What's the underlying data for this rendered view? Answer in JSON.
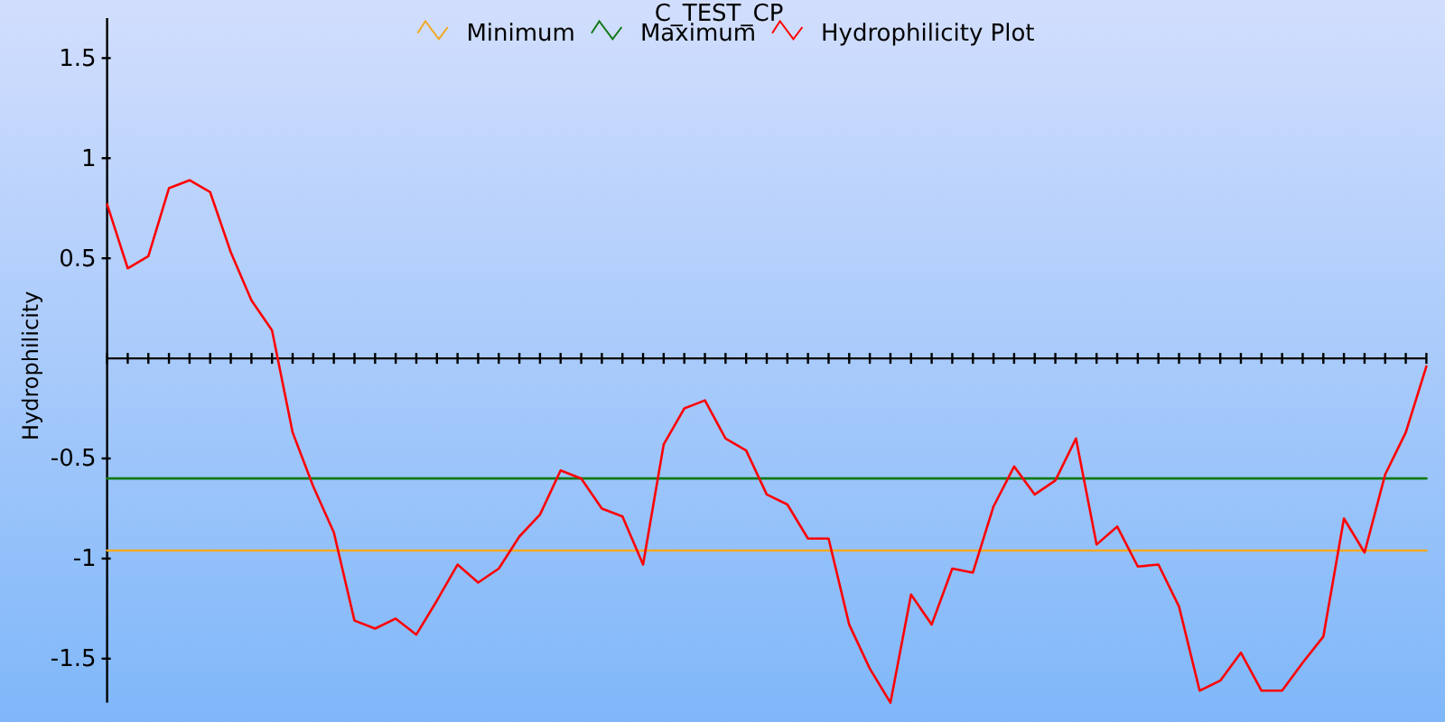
{
  "chart_data": {
    "type": "line",
    "title": "C_TEST_CP",
    "ylabel": "Hydrophilicity",
    "categories": [
      null,
      null,
      null,
      null,
      null,
      null,
      null,
      null,
      null,
      null,
      null,
      null,
      null,
      null,
      null,
      null,
      null,
      null,
      null,
      null,
      null,
      null,
      null,
      null,
      null,
      null,
      null,
      null,
      null,
      null,
      null,
      null,
      null,
      null,
      null,
      null,
      null,
      null,
      null,
      null,
      null,
      null,
      null,
      null,
      null,
      null,
      null,
      null,
      null,
      null,
      null,
      null,
      null,
      null,
      null,
      null,
      null,
      null,
      null,
      null,
      null,
      null,
      null,
      null,
      null
    ],
    "series": [
      {
        "name": "Minimum",
        "color": "#f2a922",
        "values": [
          -0.96,
          -0.96,
          -0.96,
          -0.96,
          -0.96,
          -0.96,
          -0.96,
          -0.96,
          -0.96,
          -0.96,
          -0.96,
          -0.96,
          -0.96,
          -0.96,
          -0.96,
          -0.96,
          -0.96,
          -0.96,
          -0.96,
          -0.96,
          -0.96,
          -0.96,
          -0.96,
          -0.96,
          -0.96,
          -0.96,
          -0.96,
          -0.96,
          -0.96,
          -0.96,
          -0.96,
          -0.96,
          -0.96,
          -0.96,
          -0.96,
          -0.96,
          -0.96,
          -0.96,
          -0.96,
          -0.96,
          -0.96,
          -0.96,
          -0.96,
          -0.96,
          -0.96,
          -0.96,
          -0.96,
          -0.96,
          -0.96,
          -0.96,
          -0.96,
          -0.96,
          -0.96,
          -0.96,
          -0.96,
          -0.96,
          -0.96,
          -0.96,
          -0.96,
          -0.96,
          -0.96,
          -0.96,
          -0.96,
          -0.96,
          -0.96
        ]
      },
      {
        "name": "Maximum",
        "color": "#117a17",
        "values": [
          -0.6,
          -0.6,
          -0.6,
          -0.6,
          -0.6,
          -0.6,
          -0.6,
          -0.6,
          -0.6,
          -0.6,
          -0.6,
          -0.6,
          -0.6,
          -0.6,
          -0.6,
          -0.6,
          -0.6,
          -0.6,
          -0.6,
          -0.6,
          -0.6,
          -0.6,
          -0.6,
          -0.6,
          -0.6,
          -0.6,
          -0.6,
          -0.6,
          -0.6,
          -0.6,
          -0.6,
          -0.6,
          -0.6,
          -0.6,
          -0.6,
          -0.6,
          -0.6,
          -0.6,
          -0.6,
          -0.6,
          -0.6,
          -0.6,
          -0.6,
          -0.6,
          -0.6,
          -0.6,
          -0.6,
          -0.6,
          -0.6,
          -0.6,
          -0.6,
          -0.6,
          -0.6,
          -0.6,
          -0.6,
          -0.6,
          -0.6,
          -0.6,
          -0.6,
          -0.6,
          -0.6,
          -0.6,
          -0.6,
          -0.6,
          -0.6
        ]
      },
      {
        "name": "Hydrophilicity Plot",
        "color": "#ff0000",
        "values": [
          0.77,
          0.45,
          0.51,
          0.85,
          0.89,
          0.83,
          0.53,
          0.29,
          0.14,
          -0.37,
          -0.64,
          -0.87,
          -1.31,
          -1.35,
          -1.3,
          -1.38,
          -1.21,
          -1.03,
          -1.12,
          -1.05,
          -0.89,
          -0.78,
          -0.56,
          -0.6,
          -0.75,
          -0.79,
          -1.03,
          -0.43,
          -0.25,
          -0.21,
          -0.4,
          -0.46,
          -0.68,
          -0.73,
          -0.9,
          -0.9,
          -1.33,
          -1.55,
          -1.72,
          -1.18,
          -1.33,
          -1.05,
          -1.07,
          -0.74,
          -0.54,
          -0.68,
          -0.61,
          -0.4,
          -0.93,
          -0.84,
          -1.04,
          -1.03,
          -1.24,
          -1.66,
          -1.61,
          -1.47,
          -1.66,
          -1.66,
          -1.52,
          -1.39,
          -0.8,
          -0.97,
          -0.58,
          -0.37,
          -0.04
        ]
      }
    ],
    "ylim": [
      -1.72,
      1.7
    ],
    "yticks": [
      -1.5,
      -1,
      -0.5,
      0.5,
      1,
      1.5
    ],
    "legend": "top"
  }
}
